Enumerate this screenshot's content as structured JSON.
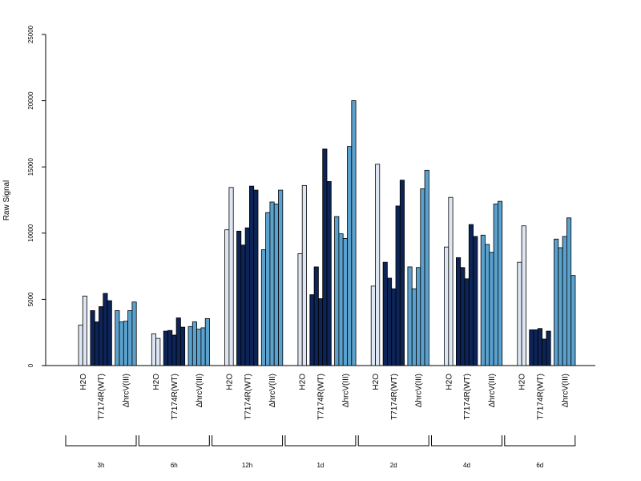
{
  "chart_data": {
    "type": "bar",
    "ylabel": "Raw Signal",
    "xlabel": "",
    "ylim": [
      0,
      25000
    ],
    "yticks": [
      0,
      5000,
      10000,
      15000,
      20000,
      25000
    ],
    "condition_labels": [
      "H2O",
      "T7174R(WT)",
      "ΔhrcV(III)"
    ],
    "condition_colors": [
      "#dde6f2",
      "#0d2457",
      "#5aa1cd"
    ],
    "time_points": [
      "3h",
      "6h",
      "12h",
      "1d",
      "2d",
      "4d",
      "6d"
    ],
    "groups": [
      {
        "time": "3h",
        "H2O": [
          3050,
          5250
        ],
        "T7174R(WT)": [
          4150,
          3300,
          4450,
          5450,
          4900
        ],
        "ΔhrcV(III)": [
          4150,
          3300,
          3350,
          4150,
          4800
        ]
      },
      {
        "time": "6h",
        "H2O": [
          2400,
          2050
        ],
        "T7174R(WT)": [
          2600,
          2650,
          2300,
          3600,
          2900
        ],
        "ΔhrcV(III)": [
          2950,
          3300,
          2750,
          2850,
          3550
        ]
      },
      {
        "time": "12h",
        "H2O": [
          10250,
          13450
        ],
        "T7174R(WT)": [
          10150,
          9100,
          10400,
          13550,
          13250
        ],
        "ΔhrcV(III)": [
          8750,
          11550,
          12350,
          12200,
          13250
        ]
      },
      {
        "time": "1d",
        "H2O": [
          8450,
          13600
        ],
        "T7174R(WT)": [
          5350,
          7450,
          5050,
          16350,
          13900
        ],
        "ΔhrcV(III)": [
          11250,
          9950,
          9600,
          16550,
          20000
        ]
      },
      {
        "time": "2d",
        "H2O": [
          6000,
          15200
        ],
        "T7174R(WT)": [
          7800,
          6600,
          5800,
          12050,
          14000
        ],
        "ΔhrcV(III)": [
          7450,
          5800,
          7400,
          13350,
          14750
        ]
      },
      {
        "time": "4d",
        "H2O": [
          8950,
          12700
        ],
        "T7174R(WT)": [
          8150,
          7400,
          6550,
          10650,
          9750
        ],
        "ΔhrcV(III)": [
          9850,
          9150,
          8550,
          12200,
          12400
        ]
      },
      {
        "time": "6d",
        "H2O": [
          7800,
          10550
        ],
        "T7174R(WT)": [
          2700,
          2700,
          2800,
          2000,
          2600
        ],
        "ΔhrcV(III)": [
          9550,
          8900,
          9750,
          11150,
          6800
        ]
      }
    ]
  }
}
